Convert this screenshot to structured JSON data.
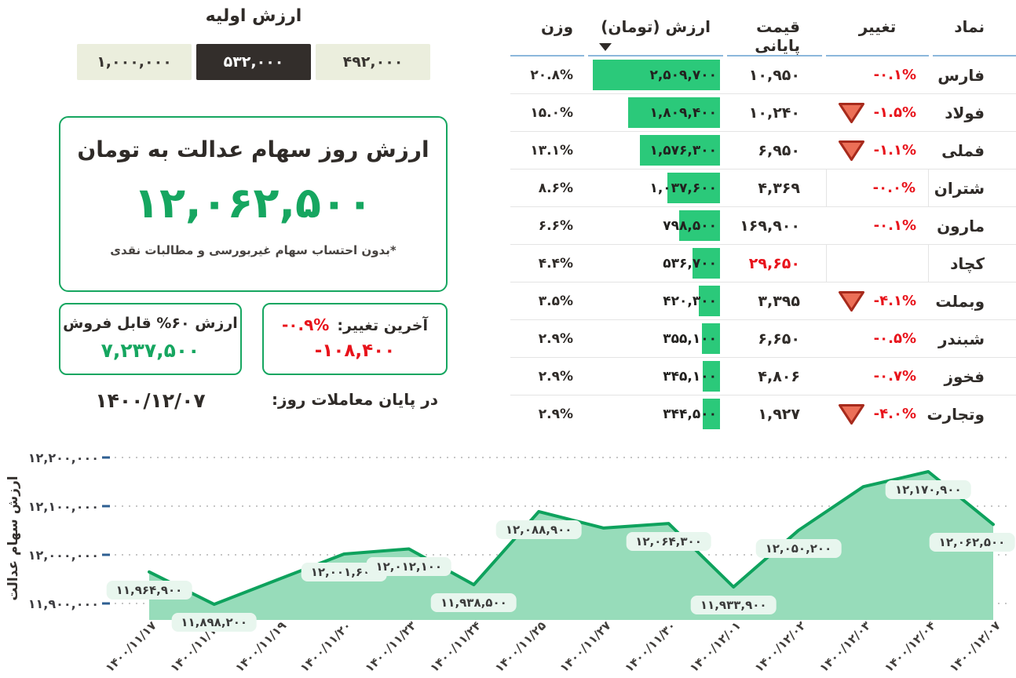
{
  "colors": {
    "accent_green": "#16a660",
    "bar_green": "#2bc97a",
    "chart_line_green": "#0ea25d",
    "chart_fill_green": "#97dcba",
    "negative_red": "#e8131b",
    "selected_button_dark": "#332e2b"
  },
  "summary": {
    "initial_value": {
      "title": "ارزش اولیه",
      "options": [
        {
          "label": "۱,۰۰۰,۰۰۰",
          "selected": false
        },
        {
          "label": "۵۳۲,۰۰۰",
          "selected": true
        },
        {
          "label": "۴۹۲,۰۰۰",
          "selected": false
        }
      ]
    },
    "main_card": {
      "title": "ارزش روز سهام عدالت به تومان",
      "value": "۱۲,۰۶۲,۵۰۰",
      "note": "*بدون احتساب سهام غیربورسی و مطالبات نقدی"
    },
    "sellable_card": {
      "title": "ارزش ۶۰% قابل فروش",
      "value": "۷,۲۳۷,۵۰۰",
      "date": "۱۴۰۰/۱۲/۰۷"
    },
    "change_card": {
      "label": "آخرین تغییر:",
      "percent": "-۰.۹%",
      "amount": "-۱۰۸,۴۰۰",
      "footer": "در پایان معاملات روز:"
    }
  },
  "table": {
    "headers": {
      "symbol": "نماد",
      "change": "تغییر",
      "close_price": "قیمت پایانی",
      "value": "ارزش (تومان)",
      "weight": "وزن"
    },
    "sort_column": "value",
    "rows": [
      {
        "symbol": "فارس",
        "change": "-۰.۱%",
        "has_arrow": false,
        "close": "۱۰,۹۵۰",
        "close_red": false,
        "value": "۲,۵۰۹,۷۰۰",
        "value_num": 2509700,
        "weight": "۲۰.۸%",
        "change_bordered": false
      },
      {
        "symbol": "فولاد",
        "change": "-۱.۵%",
        "has_arrow": true,
        "close": "۱۰,۲۴۰",
        "close_red": false,
        "value": "۱,۸۰۹,۴۰۰",
        "value_num": 1809400,
        "weight": "۱۵.۰%",
        "change_bordered": false
      },
      {
        "symbol": "فملی",
        "change": "-۱.۱%",
        "has_arrow": true,
        "close": "۶,۹۵۰",
        "close_red": false,
        "value": "۱,۵۷۶,۳۰۰",
        "value_num": 1576300,
        "weight": "۱۳.۱%",
        "change_bordered": false
      },
      {
        "symbol": "شتران",
        "change": "-۰.۰%",
        "has_arrow": false,
        "close": "۴,۳۶۹",
        "close_red": false,
        "value": "۱,۰۳۷,۶۰۰",
        "value_num": 1037600,
        "weight": "۸.۶%",
        "change_bordered": true
      },
      {
        "symbol": "مارون",
        "change": "-۰.۱%",
        "has_arrow": false,
        "close": "۱۶۹,۹۰۰",
        "close_red": false,
        "value": "۷۹۸,۵۰۰",
        "value_num": 798500,
        "weight": "۶.۶%",
        "change_bordered": false
      },
      {
        "symbol": "کچاد",
        "change": "",
        "has_arrow": false,
        "close": "۲۹,۶۵۰",
        "close_red": true,
        "value": "۵۳۶,۷۰۰",
        "value_num": 536700,
        "weight": "۴.۴%",
        "change_bordered": true
      },
      {
        "symbol": "وبملت",
        "change": "-۴.۱%",
        "has_arrow": true,
        "close": "۳,۳۹۵",
        "close_red": false,
        "value": "۴۲۰,۳۰۰",
        "value_num": 420300,
        "weight": "۳.۵%",
        "change_bordered": false
      },
      {
        "symbol": "شبندر",
        "change": "-۰.۵%",
        "has_arrow": false,
        "close": "۶,۶۵۰",
        "close_red": false,
        "value": "۳۵۵,۱۰۰",
        "value_num": 355100,
        "weight": "۲.۹%",
        "change_bordered": false
      },
      {
        "symbol": "فخوز",
        "change": "-۰.۷%",
        "has_arrow": false,
        "close": "۴,۸۰۶",
        "close_red": false,
        "value": "۳۴۵,۱۰۰",
        "value_num": 345100,
        "weight": "۲.۹%",
        "change_bordered": false
      },
      {
        "symbol": "وتجارت",
        "change": "-۴.۰%",
        "has_arrow": true,
        "close": "۱,۹۲۷",
        "close_red": false,
        "value": "۳۴۴,۵۰۰",
        "value_num": 344500,
        "weight": "۲.۹%",
        "change_bordered": false
      }
    ]
  },
  "chart_data": {
    "type": "area",
    "title": "",
    "xlabel": "",
    "ylabel": "ارزش سهام عدالت",
    "ylim": [
      11850000,
      12250000
    ],
    "grid": "horizontal-dotted",
    "legend": "none",
    "y_ticks": [
      {
        "label": "۱۲,۲۰۰,۰۰۰",
        "value": 12200000
      },
      {
        "label": "۱۲,۱۰۰,۰۰۰",
        "value": 12100000
      },
      {
        "label": "۱۲,۰۰۰,۰۰۰",
        "value": 12000000
      },
      {
        "label": "۱۱,۹۰۰,۰۰۰",
        "value": 11900000
      }
    ],
    "categories": [
      "۱۴۰۰/۱۱/۱۷",
      "۱۴۰۰/۱۱/۱۸",
      "۱۴۰۰/۱۱/۱۹",
      "۱۴۰۰/۱۱/۲۰",
      "۱۴۰۰/۱۱/۲۳",
      "۱۴۰۰/۱۱/۲۴",
      "۱۴۰۰/۱۱/۲۵",
      "۱۴۰۰/۱۱/۲۷",
      "۱۴۰۰/۱۱/۳۰",
      "۱۴۰۰/۱۲/۰۱",
      "۱۴۰۰/۱۲/۰۲",
      "۱۴۰۰/۱۲/۰۳",
      "۱۴۰۰/۱۲/۰۴",
      "۱۴۰۰/۱۲/۰۷"
    ],
    "values": [
      11964900,
      11898200,
      11950000,
      12001600,
      12012100,
      11938500,
      12088900,
      12055000,
      12064300,
      11933900,
      12050200,
      12140000,
      12170900,
      12062500
    ],
    "point_labels": [
      "۱۱,۹۶۴,۹۰۰",
      "۱۱,۸۹۸,۲۰۰",
      null,
      "۱۲,۰۰۱,۶۰۰",
      "۱۲,۰۱۲,۱۰۰",
      "۱۱,۹۳۸,۵۰۰",
      "۱۲,۰۸۸,۹۰۰",
      null,
      "۱۲,۰۶۴,۳۰۰",
      "۱۱,۹۳۳,۹۰۰",
      "۱۲,۰۵۰,۲۰۰",
      null,
      "۱۲,۱۷۰,۹۰۰",
      "۱۲,۰۶۲,۵۰۰"
    ],
    "unlabeled_points_estimated": [
      2,
      7,
      11
    ]
  }
}
